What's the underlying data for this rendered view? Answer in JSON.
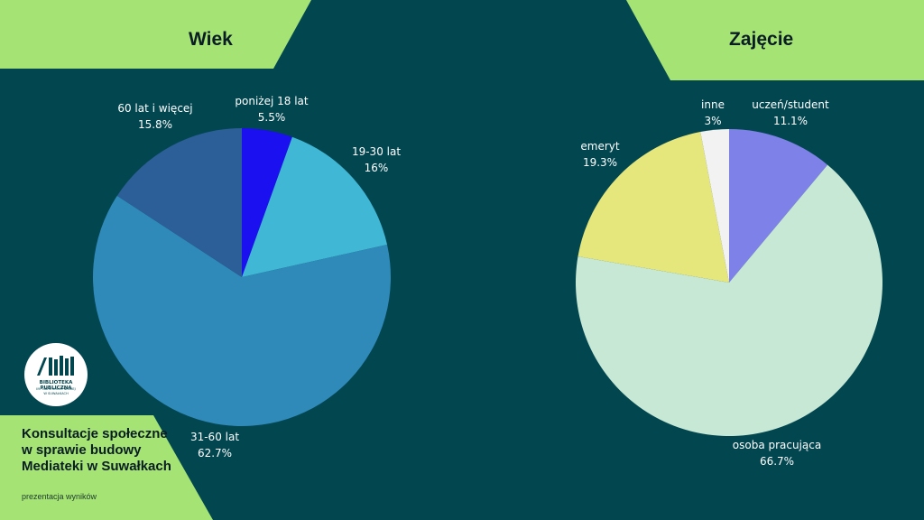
{
  "colors": {
    "background": "#024650",
    "accent_green": "#a4e374"
  },
  "headers": {
    "left": "Wiek",
    "right": "Zajęcie"
  },
  "logo": {
    "icon": "books-icon",
    "line1": "BIBLIOTEKA PUBLICZNA",
    "line2": "IM. MARII KONOPNICKIEJ",
    "line3": "W SUWAŁKACH"
  },
  "footer": {
    "title": "Konsultacje społeczne w sprawie budowy Mediateki w Suwałkach",
    "subtitle": "prezentacja wyników"
  },
  "chart_data": [
    {
      "type": "pie",
      "title": "Wiek",
      "slices": [
        {
          "label": "poniżej 18 lat",
          "value": 5.5,
          "display": "5.5%",
          "color": "#1a10f0"
        },
        {
          "label": "19-30 lat",
          "value": 16,
          "display": "16%",
          "color": "#41b7d6"
        },
        {
          "label": "31-60 lat",
          "value": 62.7,
          "display": "62.7%",
          "color": "#2f8aba"
        },
        {
          "label": "60 lat i więcej",
          "value": 15.8,
          "display": "15.8%",
          "color": "#2c5e97"
        }
      ]
    },
    {
      "type": "pie",
      "title": "Zajęcie",
      "slices": [
        {
          "label": "uczeń/student",
          "value": 11.1,
          "display": "11.1%",
          "color": "#7e81e8"
        },
        {
          "label": "osoba pracująca",
          "value": 66.7,
          "display": "66.7%",
          "color": "#c7e8d5"
        },
        {
          "label": "emeryt",
          "value": 19.3,
          "display": "19.3%",
          "color": "#e5e67c"
        },
        {
          "label": "inne",
          "value": 3,
          "display": "3%",
          "color": "#f2f2f2"
        }
      ]
    }
  ]
}
